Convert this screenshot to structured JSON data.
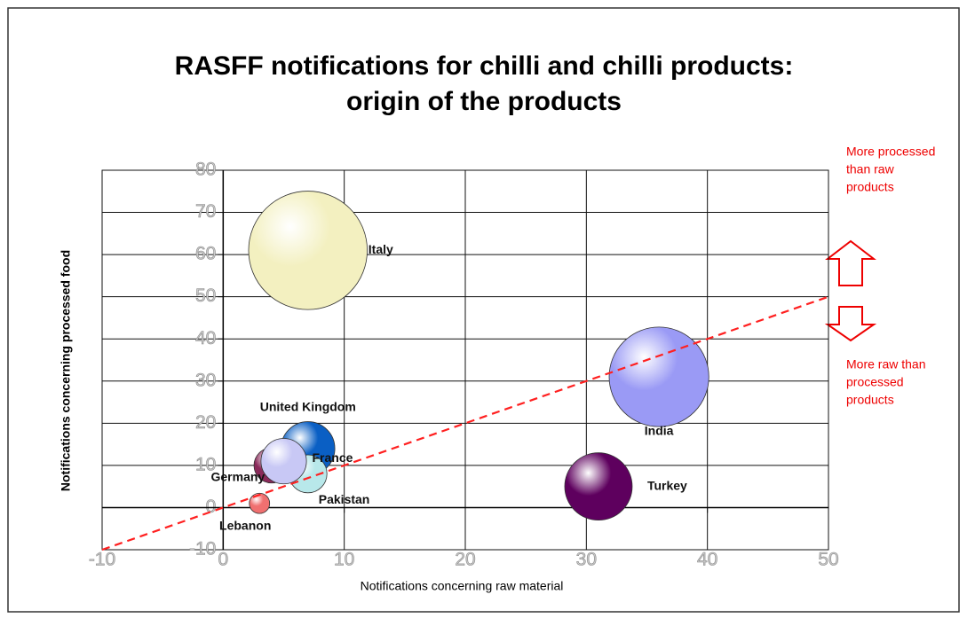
{
  "chart_data": {
    "type": "bubble",
    "title": [
      "RASFF notifications for chilli and chilli products:",
      "origin of the products"
    ],
    "x_label": "Notifications concerning raw material",
    "y_label": "Notifications concerning processed food",
    "categories": [
      "Italy",
      "India",
      "Turkey",
      "United Kingdom",
      "Pakistan",
      "Germany",
      "France",
      "Lebanon"
    ],
    "x": [
      7,
      36,
      31,
      7,
      7,
      4,
      5,
      3
    ],
    "values": [
      61,
      31,
      5,
      14,
      8,
      10,
      11,
      1
    ],
    "sizes": [
      68,
      48,
      22,
      14,
      7,
      6,
      10,
      2
    ],
    "colors": [
      "#f3f0c0",
      "#9a9af5",
      "#5e005e",
      "#0a5fc4",
      "#b8e8ea",
      "#8a2a5a",
      "#c8c8f5",
      "#f07070"
    ],
    "xlim": [
      -10,
      50
    ],
    "xticks": [
      -10,
      0,
      10,
      20,
      30,
      40,
      50
    ],
    "ylim": [
      -10,
      80
    ],
    "yticks": [
      -10,
      0,
      10,
      20,
      30,
      40,
      50,
      60,
      70,
      80
    ],
    "grid": true,
    "diagonal": {
      "x": [
        -10,
        50
      ],
      "y": [
        -10,
        50
      ],
      "color": "#ff2020"
    },
    "annotations": [
      [
        "More processed",
        "than raw",
        "products"
      ],
      [
        "More raw than",
        "processed",
        "products"
      ]
    ]
  }
}
